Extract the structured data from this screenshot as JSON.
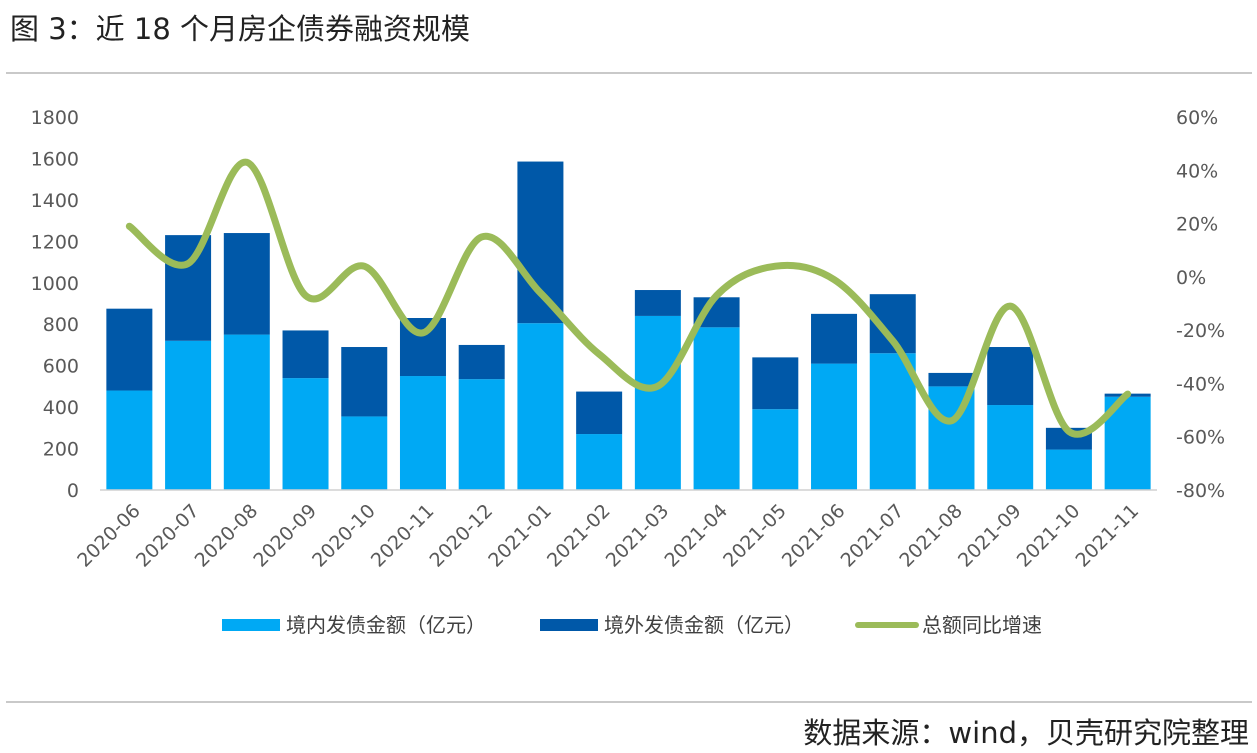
{
  "figure": {
    "title": "图 3：近 18 个月房企债券融资规模",
    "source": "数据来源：wind，贝壳研究院整理"
  },
  "chart_data": {
    "type": "bar",
    "stacked": true,
    "categories": [
      "2020-06",
      "2020-07",
      "2020-08",
      "2020-09",
      "2020-10",
      "2020-11",
      "2020-12",
      "2021-01",
      "2021-02",
      "2021-03",
      "2021-04",
      "2021-05",
      "2021-06",
      "2021-07",
      "2021-08",
      "2021-09",
      "2021-10",
      "2021-11"
    ],
    "series": [
      {
        "name": "境内发债金额（亿元）",
        "type": "bar",
        "axis": "left",
        "color": "#00a9f4",
        "values": [
          480,
          720,
          750,
          540,
          355,
          550,
          535,
          805,
          270,
          840,
          785,
          390,
          610,
          660,
          500,
          410,
          195,
          450
        ]
      },
      {
        "name": "境外发债金额（亿元）",
        "type": "bar",
        "axis": "left",
        "color": "#0058a8",
        "values": [
          395,
          510,
          490,
          230,
          335,
          280,
          165,
          780,
          205,
          125,
          145,
          250,
          240,
          285,
          65,
          280,
          105,
          15
        ]
      },
      {
        "name": "总额同比增速",
        "type": "line",
        "axis": "right",
        "color": "#9bbb59",
        "smooth": true,
        "values": [
          0.19,
          0.05,
          0.43,
          -0.07,
          0.04,
          -0.21,
          0.15,
          -0.06,
          -0.29,
          -0.41,
          -0.07,
          0.04,
          -0.01,
          -0.24,
          -0.54,
          -0.11,
          -0.58,
          -0.44
        ]
      }
    ],
    "y_left": {
      "min": 0,
      "max": 1800,
      "step": 200,
      "tick_labels": [
        "0",
        "200",
        "400",
        "600",
        "800",
        "1000",
        "1200",
        "1400",
        "1600",
        "1800"
      ]
    },
    "y_right": {
      "min": -0.8,
      "max": 0.6,
      "step": 0.2,
      "tick_labels": [
        "-80%",
        "-60%",
        "-40%",
        "-20%",
        "0%",
        "20%",
        "40%",
        "60%"
      ]
    },
    "grid": false,
    "legend_position": "bottom"
  }
}
